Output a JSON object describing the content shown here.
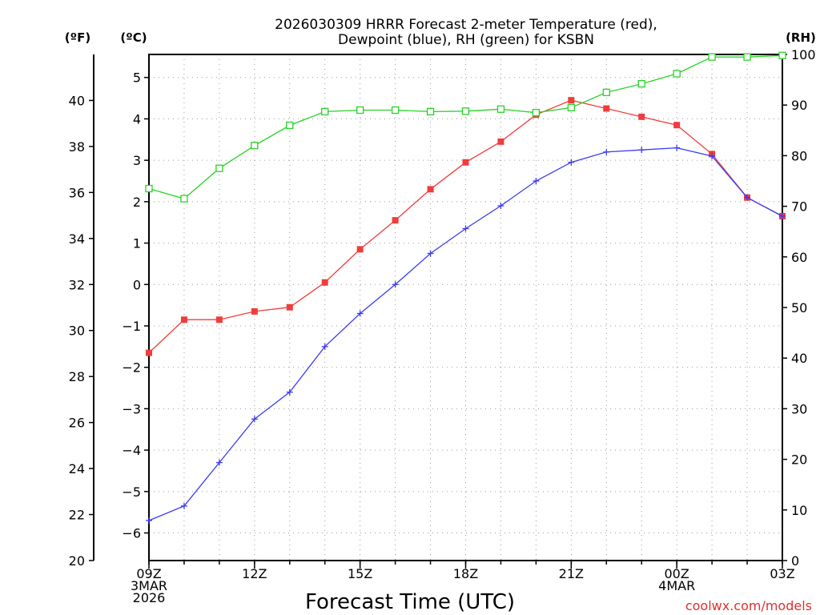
{
  "title_line1": "2026030309 HRRR Forecast 2-meter Temperature (red),",
  "title_line2": "Dewpoint (blue), RH (green) for KSBN",
  "unit_f": "(ºF)",
  "unit_c": "(ºC)",
  "unit_rh": "(RH)",
  "xlabel": "Forecast Time (UTC)",
  "credit": "coolwx.com/models",
  "colors": {
    "temp": "#f03c3c",
    "dew": "#3c3cf0",
    "rh": "#28d228",
    "grid": "#9a9a9a",
    "credit": "#e03030"
  },
  "chart_data": {
    "type": "line",
    "title": "2026030309 HRRR Forecast 2-meter Temperature (red), Dewpoint (blue), RH (green) for KSBN",
    "xlabel": "Forecast Time (UTC)",
    "x_hours": [
      0,
      1,
      2,
      3,
      4,
      5,
      6,
      7,
      8,
      9,
      10,
      11,
      12,
      13,
      14,
      15,
      16,
      17,
      18
    ],
    "xlim": [
      0,
      18
    ],
    "x_ticks": [
      {
        "hour": 0,
        "lines": [
          "09Z",
          "3MAR",
          "2026"
        ]
      },
      {
        "hour": 3,
        "lines": [
          "12Z"
        ]
      },
      {
        "hour": 6,
        "lines": [
          "15Z"
        ]
      },
      {
        "hour": 9,
        "lines": [
          "18Z"
        ]
      },
      {
        "hour": 12,
        "lines": [
          "21Z"
        ]
      },
      {
        "hour": 15,
        "lines": [
          "00Z",
          "4MAR"
        ]
      },
      {
        "hour": 18,
        "lines": [
          "03Z"
        ]
      }
    ],
    "y_left_f": {
      "ylim": [
        20,
        42
      ],
      "ticks": [
        20,
        22,
        24,
        26,
        28,
        30,
        32,
        34,
        36,
        38,
        40
      ]
    },
    "y_left_c": {
      "ticks": [
        -6,
        -5,
        -4,
        -3,
        -2,
        -1,
        0,
        1,
        2,
        3,
        4,
        5
      ]
    },
    "y_right_rh": {
      "ylim": [
        0,
        100
      ],
      "ticks": [
        0,
        10,
        20,
        30,
        40,
        50,
        60,
        70,
        80,
        90,
        100
      ]
    },
    "series": [
      {
        "name": "Temperature (C)",
        "axis": "c",
        "color": "#f03c3c",
        "marker": "filled-square",
        "values": [
          -1.65,
          -0.85,
          -0.85,
          -0.65,
          -0.55,
          0.05,
          0.85,
          1.55,
          2.3,
          2.95,
          3.45,
          4.1,
          4.45,
          4.25,
          4.05,
          3.85,
          3.15,
          2.1,
          1.65
        ]
      },
      {
        "name": "Dewpoint (C)",
        "axis": "c",
        "color": "#3c3cf0",
        "marker": "plus",
        "values": [
          -5.7,
          -5.35,
          -4.3,
          -3.25,
          -2.6,
          -1.5,
          -0.7,
          0,
          0.75,
          1.35,
          1.9,
          2.5,
          2.95,
          3.2,
          3.25,
          3.3,
          3.1,
          2.1,
          1.65
        ]
      },
      {
        "name": "Relative Humidity (%)",
        "axis": "rh",
        "color": "#28d228",
        "marker": "open-square",
        "values": [
          73.5,
          71.5,
          77.5,
          82,
          86,
          88.7,
          89,
          89,
          88.7,
          88.8,
          89.2,
          88.5,
          89.5,
          92.5,
          94.2,
          96.2,
          99.5,
          99.5,
          99.8
        ]
      }
    ]
  }
}
